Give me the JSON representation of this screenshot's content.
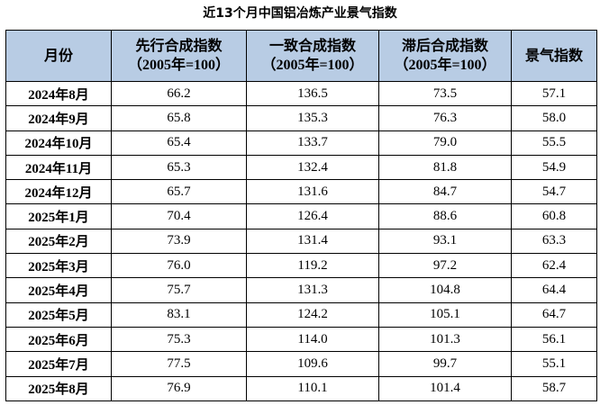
{
  "title": "近13个月中国铝冶炼产业景气指数",
  "headers": {
    "month": "月份",
    "leading": {
      "line1": "先行合成指数",
      "line2": "（2005年=100）"
    },
    "coincident": {
      "line1": "一致合成指数",
      "line2": "（2005年=100）"
    },
    "lagging": {
      "line1": "滞后合成指数",
      "line2": "（2005年=100）"
    },
    "prosperity": "景气指数"
  },
  "rows": [
    {
      "month": "2024年8月",
      "leading": "66.2",
      "coincident": "136.5",
      "lagging": "73.5",
      "prosperity": "57.1"
    },
    {
      "month": "2024年9月",
      "leading": "65.8",
      "coincident": "135.3",
      "lagging": "76.3",
      "prosperity": "58.0"
    },
    {
      "month": "2024年10月",
      "leading": "65.4",
      "coincident": "133.7",
      "lagging": "79.0",
      "prosperity": "55.5"
    },
    {
      "month": "2024年11月",
      "leading": "65.3",
      "coincident": "132.4",
      "lagging": "81.8",
      "prosperity": "54.9"
    },
    {
      "month": "2024年12月",
      "leading": "65.7",
      "coincident": "131.6",
      "lagging": "84.7",
      "prosperity": "54.7"
    },
    {
      "month": "2025年1月",
      "leading": "70.4",
      "coincident": "126.4",
      "lagging": "88.6",
      "prosperity": "60.8"
    },
    {
      "month": "2025年2月",
      "leading": "73.9",
      "coincident": "131.4",
      "lagging": "93.1",
      "prosperity": "63.3"
    },
    {
      "month": "2025年3月",
      "leading": "76.0",
      "coincident": "119.2",
      "lagging": "97.2",
      "prosperity": "62.4"
    },
    {
      "month": "2025年4月",
      "leading": "75.7",
      "coincident": "131.3",
      "lagging": "104.8",
      "prosperity": "64.4"
    },
    {
      "month": "2025年5月",
      "leading": "83.1",
      "coincident": "124.2",
      "lagging": "105.1",
      "prosperity": "64.7"
    },
    {
      "month": "2025年6月",
      "leading": "75.3",
      "coincident": "114.0",
      "lagging": "101.3",
      "prosperity": "56.1"
    },
    {
      "month": "2025年7月",
      "leading": "77.5",
      "coincident": "109.6",
      "lagging": "99.7",
      "prosperity": "55.1"
    },
    {
      "month": "2025年8月",
      "leading": "76.9",
      "coincident": "110.1",
      "lagging": "101.4",
      "prosperity": "58.7"
    }
  ],
  "colors": {
    "header_bg": "#b8cce4",
    "border": "#000000"
  }
}
